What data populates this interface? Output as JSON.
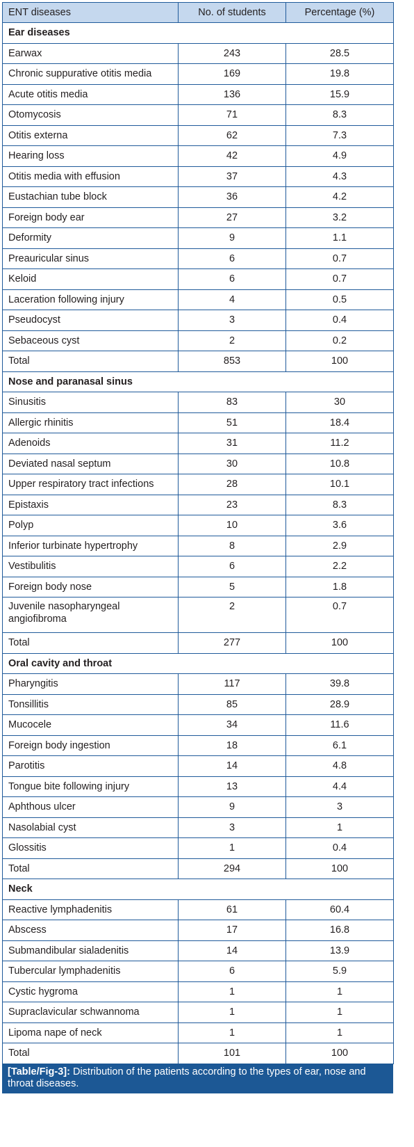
{
  "headers": [
    "ENT diseases",
    "No. of students",
    "Percentage (%)"
  ],
  "sections": [
    {
      "title": "Ear diseases",
      "rows": [
        [
          "Earwax",
          "243",
          "28.5"
        ],
        [
          "Chronic suppurative otitis media",
          "169",
          "19.8"
        ],
        [
          "Acute otitis media",
          "136",
          "15.9"
        ],
        [
          "Otomycosis",
          "71",
          "8.3"
        ],
        [
          "Otitis externa",
          "62",
          "7.3"
        ],
        [
          "Hearing loss",
          "42",
          "4.9"
        ],
        [
          "Otitis media with effusion",
          "37",
          "4.3"
        ],
        [
          "Eustachian tube block",
          "36",
          "4.2"
        ],
        [
          "Foreign body ear",
          "27",
          "3.2"
        ],
        [
          "Deformity",
          "9",
          "1.1"
        ],
        [
          "Preauricular sinus",
          "6",
          "0.7"
        ],
        [
          "Keloid",
          "6",
          "0.7"
        ],
        [
          "Laceration following injury",
          "4",
          "0.5"
        ],
        [
          "Pseudocyst",
          "3",
          "0.4"
        ],
        [
          "Sebaceous cyst",
          "2",
          "0.2"
        ],
        [
          "Total",
          "853",
          "100"
        ]
      ]
    },
    {
      "title": "Nose and paranasal sinus",
      "rows": [
        [
          "Sinusitis",
          "83",
          "30"
        ],
        [
          "Allergic rhinitis",
          "51",
          "18.4"
        ],
        [
          "Adenoids",
          "31",
          "11.2"
        ],
        [
          "Deviated nasal septum",
          "30",
          "10.8"
        ],
        [
          "Upper respiratory tract infections",
          "28",
          "10.1"
        ],
        [
          "Epistaxis",
          "23",
          "8.3"
        ],
        [
          "Polyp",
          "10",
          "3.6"
        ],
        [
          "Inferior turbinate hypertrophy",
          "8",
          "2.9"
        ],
        [
          "Vestibulitis",
          "6",
          "2.2"
        ],
        [
          "Foreign body nose",
          "5",
          "1.8"
        ],
        [
          "Juvenile nasopharyngeal angiofibroma",
          "2",
          "0.7"
        ],
        [
          "Total",
          "277",
          "100"
        ]
      ]
    },
    {
      "title": "Oral cavity and throat",
      "rows": [
        [
          "Pharyngitis",
          "117",
          "39.8"
        ],
        [
          "Tonsillitis",
          "85",
          "28.9"
        ],
        [
          "Mucocele",
          "34",
          "11.6"
        ],
        [
          "Foreign body ingestion",
          "18",
          "6.1"
        ],
        [
          "Parotitis",
          "14",
          "4.8"
        ],
        [
          "Tongue bite following injury",
          "13",
          "4.4"
        ],
        [
          "Aphthous ulcer",
          "9",
          "3"
        ],
        [
          "Nasolabial cyst",
          "3",
          "1"
        ],
        [
          "Glossitis",
          "1",
          "0.4"
        ],
        [
          "Total",
          "294",
          "100"
        ]
      ]
    },
    {
      "title": "Neck",
      "rows": [
        [
          "Reactive lymphadenitis",
          "61",
          "60.4"
        ],
        [
          "Abscess",
          "17",
          "16.8"
        ],
        [
          "Submandibular sialadenitis",
          "14",
          "13.9"
        ],
        [
          "Tubercular lymphadenitis",
          "6",
          "5.9"
        ],
        [
          "Cystic hygroma",
          "1",
          "1"
        ],
        [
          "Supraclavicular schwannoma",
          "1",
          "1"
        ],
        [
          "Lipoma nape of neck",
          "1",
          "1"
        ],
        [
          "Total",
          "101",
          "100"
        ]
      ]
    }
  ],
  "caption": {
    "label": "[Table/Fig-3]:",
    "text": " Distribution of the patients according to the types of ear, nose and throat diseases."
  }
}
